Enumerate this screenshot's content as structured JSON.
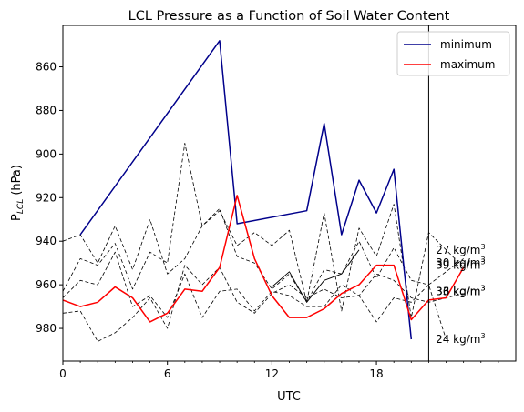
{
  "chart_data": {
    "type": "line",
    "title": "LCL Pressure as a Function of Soil Water Content",
    "xlabel": "UTC",
    "ylabel_main": "P",
    "ylabel_sub": "LCL",
    "ylabel_unit": " (hPa)",
    "xlim": [
      0,
      26
    ],
    "ylim": [
      995,
      841
    ],
    "y_inverted": true,
    "xticks": [
      0,
      6,
      12,
      18
    ],
    "xtick_labels": [
      "0",
      "6",
      "12",
      "18"
    ],
    "x_minor_ticks": [
      1,
      2,
      3,
      4,
      5,
      7,
      8,
      9,
      10,
      11,
      13,
      14,
      15,
      16,
      17,
      19,
      20,
      21,
      22,
      23,
      24,
      25
    ],
    "yticks": [
      860,
      880,
      900,
      920,
      940,
      960,
      980
    ],
    "ytick_labels": [
      "860",
      "880",
      "900",
      "920",
      "940",
      "960",
      "980"
    ],
    "vertical_line_x": 21,
    "legend": {
      "position": "top-right",
      "entries": [
        {
          "name": "minimum",
          "color": "#00008b"
        },
        {
          "name": "maximum",
          "color": "#ff0000"
        }
      ]
    },
    "series": [
      {
        "name": "minimum",
        "color": "#00008b",
        "style": "solid",
        "points": [
          [
            1,
            937
          ],
          [
            9,
            848
          ],
          [
            10,
            932
          ],
          [
            14,
            926
          ],
          [
            15,
            886
          ],
          [
            16,
            937
          ],
          [
            17,
            912
          ],
          [
            18,
            927
          ],
          [
            19,
            907
          ],
          [
            20,
            985
          ]
        ]
      },
      {
        "name": "maximum",
        "color": "#ff0000",
        "style": "solid",
        "points": [
          [
            0,
            967
          ],
          [
            1,
            970
          ],
          [
            2,
            968
          ],
          [
            3,
            961
          ],
          [
            4,
            966
          ],
          [
            5,
            977
          ],
          [
            6,
            973
          ],
          [
            7,
            962
          ],
          [
            8,
            963
          ],
          [
            9,
            952
          ],
          [
            10,
            919
          ],
          [
            11,
            948
          ],
          [
            12,
            965
          ],
          [
            13,
            975
          ],
          [
            14,
            975
          ],
          [
            15,
            971
          ],
          [
            16,
            964
          ],
          [
            17,
            960
          ],
          [
            18,
            951
          ],
          [
            19,
            951
          ],
          [
            20,
            976
          ],
          [
            21,
            967
          ],
          [
            22,
            966
          ],
          [
            23,
            952
          ]
        ]
      },
      {
        "name": "",
        "color": "#000000",
        "style": "solid",
        "points": [
          [
            12,
            961
          ],
          [
            13,
            954
          ],
          [
            14,
            968
          ],
          [
            15,
            958
          ],
          [
            16,
            955
          ],
          [
            17,
            944
          ]
        ]
      },
      {
        "name": "",
        "color": "#000000",
        "style": "dashed",
        "points": [
          [
            0,
            940
          ],
          [
            1,
            937
          ],
          [
            2,
            950
          ],
          [
            3,
            933
          ],
          [
            4,
            953
          ],
          [
            5,
            930
          ],
          [
            6,
            955
          ],
          [
            7,
            948
          ],
          [
            8,
            933
          ],
          [
            9,
            926
          ],
          [
            10,
            942
          ],
          [
            11,
            936
          ],
          [
            12,
            942
          ],
          [
            13,
            935
          ],
          [
            14,
            968
          ],
          [
            15,
            927
          ],
          [
            16,
            972
          ],
          [
            17,
            934
          ],
          [
            18,
            947
          ],
          [
            19,
            923
          ],
          [
            20,
            975
          ],
          [
            21,
            936
          ],
          [
            23,
            952
          ]
        ]
      },
      {
        "name": "",
        "color": "#000000",
        "style": "dashed",
        "points": [
          [
            0,
            963
          ],
          [
            1,
            948
          ],
          [
            2,
            951
          ],
          [
            3,
            941
          ],
          [
            4,
            962
          ],
          [
            5,
            945
          ],
          [
            6,
            950
          ],
          [
            7,
            895
          ],
          [
            8,
            933
          ],
          [
            9,
            925
          ],
          [
            10,
            947
          ],
          [
            11,
            950
          ],
          [
            12,
            962
          ],
          [
            13,
            955
          ],
          [
            14,
            968
          ],
          [
            15,
            953
          ],
          [
            16,
            955
          ],
          [
            17,
            940
          ],
          [
            18,
            957
          ],
          [
            19,
            943
          ],
          [
            20,
            958
          ],
          [
            21,
            960
          ],
          [
            23,
            948
          ]
        ]
      },
      {
        "name": "",
        "color": "#000000",
        "style": "dashed",
        "points": [
          [
            0,
            966
          ],
          [
            1,
            958
          ],
          [
            2,
            960
          ],
          [
            3,
            945
          ],
          [
            4,
            970
          ],
          [
            5,
            965
          ],
          [
            6,
            975
          ],
          [
            7,
            955
          ],
          [
            8,
            975
          ],
          [
            9,
            963
          ],
          [
            10,
            962
          ],
          [
            11,
            972
          ],
          [
            12,
            963
          ],
          [
            13,
            965
          ],
          [
            14,
            970
          ],
          [
            15,
            970
          ],
          [
            16,
            960
          ],
          [
            17,
            965
          ],
          [
            18,
            955
          ],
          [
            19,
            958
          ],
          [
            20,
            966
          ],
          [
            21,
            968
          ],
          [
            23,
            964
          ]
        ]
      },
      {
        "name": "",
        "color": "#000000",
        "style": "dashed",
        "points": [
          [
            0,
            973
          ],
          [
            1,
            972
          ],
          [
            2,
            986
          ],
          [
            3,
            982
          ],
          [
            4,
            975
          ],
          [
            5,
            966
          ],
          [
            6,
            980
          ],
          [
            7,
            951
          ],
          [
            8,
            960
          ],
          [
            9,
            952
          ],
          [
            10,
            968
          ],
          [
            11,
            973
          ],
          [
            12,
            964
          ],
          [
            13,
            960
          ],
          [
            14,
            966
          ],
          [
            15,
            962
          ],
          [
            16,
            966
          ],
          [
            17,
            965
          ],
          [
            18,
            977
          ],
          [
            19,
            966
          ],
          [
            20,
            968
          ],
          [
            21,
            960
          ],
          [
            22,
            985
          ]
        ]
      }
    ],
    "annotations": [
      {
        "base": "27 kg/m",
        "exp": "3",
        "x": 21.4,
        "y": 944
      },
      {
        "base": "30 kg/m",
        "exp": "3",
        "x": 21.4,
        "y": 950
      },
      {
        "base": "39 kg/m",
        "exp": "3",
        "x": 21.4,
        "y": 951
      },
      {
        "base": "33 kg/m",
        "exp": "3",
        "x": 21.4,
        "y": 963
      },
      {
        "base": "36 kg/m",
        "exp": "3",
        "x": 21.4,
        "y": 963
      },
      {
        "base": "24 kg/m",
        "exp": "3",
        "x": 21.4,
        "y": 985
      }
    ]
  }
}
